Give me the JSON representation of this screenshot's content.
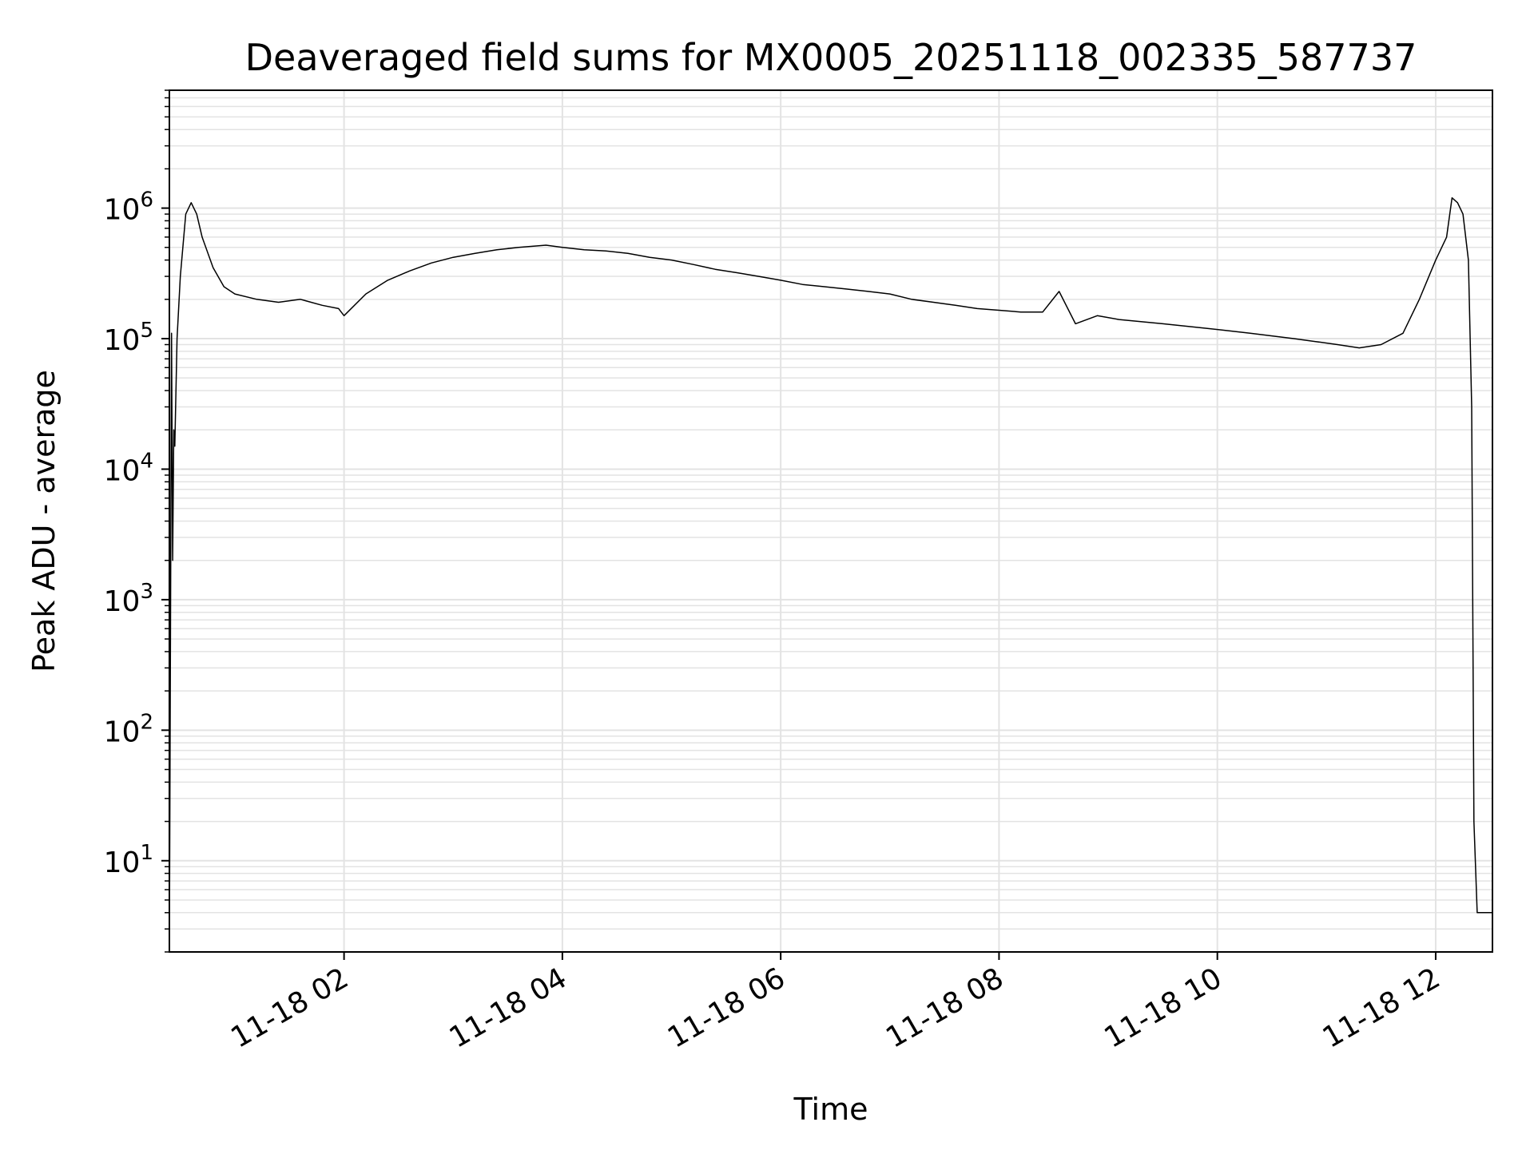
{
  "chart_data": {
    "type": "line",
    "title": "Deaveraged field sums for MX0005_20251118_002335_587737",
    "xlabel": "Time",
    "ylabel": "Peak ADU - average",
    "yscale": "log",
    "xlim": [
      "11-18 00:24",
      "11-18 12:31"
    ],
    "ylim": [
      2,
      8000000
    ],
    "grid": true,
    "line_color": "#000000",
    "grid_color": "#e3e3e3",
    "x_ticks": [
      {
        "label": "11-18 02",
        "hour": 2
      },
      {
        "label": "11-18 04",
        "hour": 4
      },
      {
        "label": "11-18 06",
        "hour": 6
      },
      {
        "label": "11-18 08",
        "hour": 8
      },
      {
        "label": "11-18 10",
        "hour": 10
      },
      {
        "label": "11-18 12",
        "hour": 12
      }
    ],
    "y_ticks": [
      {
        "base": "10",
        "exp": "1",
        "value": 10
      },
      {
        "base": "10",
        "exp": "2",
        "value": 100
      },
      {
        "base": "10",
        "exp": "3",
        "value": 1000
      },
      {
        "base": "10",
        "exp": "4",
        "value": 10000
      },
      {
        "base": "10",
        "exp": "5",
        "value": 100000
      },
      {
        "base": "10",
        "exp": "6",
        "value": 1000000
      }
    ],
    "series": [
      {
        "x_hours": [
          0.4,
          0.42,
          0.43,
          0.44,
          0.45,
          0.47,
          0.5,
          0.55,
          0.6,
          0.65,
          0.7,
          0.8,
          0.9,
          1.0,
          1.2,
          1.4,
          1.6,
          1.8,
          1.95,
          2.0,
          2.2,
          2.4,
          2.6,
          2.8,
          3.0,
          3.2,
          3.4,
          3.6,
          3.85,
          4.0,
          4.2,
          4.4,
          4.6,
          4.8,
          5.0,
          5.2,
          5.4,
          5.6,
          5.8,
          6.0,
          6.2,
          6.4,
          6.6,
          6.8,
          7.0,
          7.2,
          7.4,
          7.6,
          7.8,
          8.0,
          8.2,
          8.4,
          8.55,
          8.7,
          8.9,
          9.1,
          9.3,
          9.5,
          9.7,
          9.9,
          10.1,
          10.3,
          10.5,
          10.7,
          10.9,
          11.1,
          11.3,
          11.5,
          11.7,
          11.85,
          12.0,
          12.1,
          12.15,
          12.2,
          12.25,
          12.3,
          12.33,
          12.35,
          12.38,
          12.4,
          12.45,
          12.52
        ],
        "y_values": [
          2,
          110000,
          2000,
          20000,
          15000,
          100000,
          300000,
          900000,
          1100000,
          900000,
          600000,
          350000,
          250000,
          220000,
          200000,
          190000,
          200000,
          180000,
          170000,
          150000,
          220000,
          280000,
          330000,
          380000,
          420000,
          450000,
          480000,
          500000,
          520000,
          500000,
          480000,
          470000,
          450000,
          420000,
          400000,
          370000,
          340000,
          320000,
          300000,
          280000,
          260000,
          250000,
          240000,
          230000,
          220000,
          200000,
          190000,
          180000,
          170000,
          165000,
          160000,
          160000,
          230000,
          130000,
          150000,
          140000,
          135000,
          130000,
          125000,
          120000,
          115000,
          110000,
          105000,
          100000,
          95000,
          90000,
          85000,
          90000,
          110000,
          200000,
          400000,
          600000,
          1200000,
          1100000,
          900000,
          400000,
          30000,
          20,
          4,
          4,
          4,
          4
        ]
      }
    ],
    "annotations": []
  }
}
